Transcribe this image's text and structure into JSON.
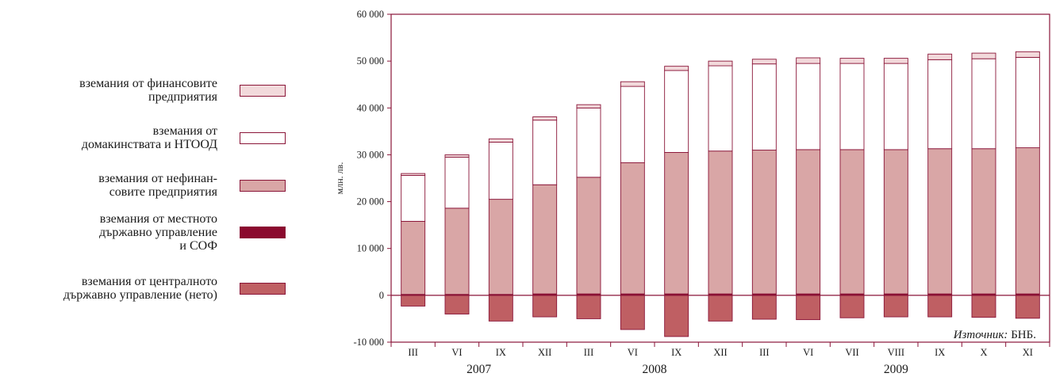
{
  "legend": {
    "items": [
      {
        "lines": [
          "вземания от финансовите",
          "предприятия"
        ],
        "color": "#f2d9db"
      },
      {
        "lines": [
          "вземания от",
          "домакинствата и НТООД"
        ],
        "color": "#ffffff"
      },
      {
        "lines": [
          "вземания от нефинан-",
          "совите предприятия"
        ],
        "color": "#d9a6a6"
      },
      {
        "lines": [
          "вземания от местното",
          "държавно управление",
          "и СОФ"
        ],
        "color": "#8b0a2e"
      },
      {
        "lines": [
          "вземания от централното",
          "държавно управление (нето)"
        ],
        "color": "#bf5f63"
      }
    ]
  },
  "source": {
    "label": "Източник:",
    "text": " БНБ."
  },
  "chart_data": {
    "type": "bar",
    "stacked": true,
    "ylabel": "млн. лв.",
    "ylim": [
      -10000,
      60000
    ],
    "yticks": [
      -10000,
      0,
      10000,
      20000,
      30000,
      40000,
      50000,
      60000
    ],
    "ytick_labels": [
      "-10 000",
      "0",
      "10 000",
      "20 000",
      "30 000",
      "40 000",
      "50 000",
      "60 000"
    ],
    "categories": [
      "III",
      "VI",
      "IX",
      "XII",
      "III",
      "VI",
      "IX",
      "XII",
      "III",
      "VI",
      "VII",
      "VIII",
      "IX",
      "X",
      "XI"
    ],
    "years": [
      {
        "label": "2007",
        "center_index": 1.5
      },
      {
        "label": "2008",
        "center_index": 5.5
      },
      {
        "label": "2009",
        "center_index": 11
      }
    ],
    "series": [
      {
        "name": "вземания от централното държавно управление (нето)",
        "color": "#bf5f63",
        "values": [
          -2300,
          -4000,
          -5500,
          -4600,
          -5000,
          -7300,
          -8800,
          -5500,
          -5100,
          -5200,
          -4800,
          -4600,
          -4600,
          -4700,
          -4900
        ]
      },
      {
        "name": "вземания от местното държавно управление и СОФ",
        "color": "#8b0a2e",
        "values": [
          200,
          200,
          200,
          300,
          300,
          300,
          300,
          300,
          300,
          300,
          300,
          300,
          300,
          300,
          300
        ]
      },
      {
        "name": "вземания от нефинансовите предприятия",
        "color": "#d9a6a6",
        "values": [
          15600,
          18400,
          20300,
          23300,
          24900,
          28000,
          30200,
          30500,
          30700,
          30800,
          30800,
          30800,
          31000,
          31000,
          31200
        ]
      },
      {
        "name": "вземания от домакинствата и НТООД",
        "color": "#ffffff",
        "values": [
          9800,
          10900,
          12200,
          13800,
          14800,
          16300,
          17500,
          18200,
          18400,
          18400,
          18400,
          18400,
          19000,
          19200,
          19300
        ]
      },
      {
        "name": "вземания от финансовите предприятия",
        "color": "#f2d9db",
        "values": [
          400,
          500,
          700,
          700,
          700,
          1000,
          900,
          1000,
          1000,
          1200,
          1100,
          1100,
          1200,
          1200,
          1200
        ]
      }
    ]
  }
}
